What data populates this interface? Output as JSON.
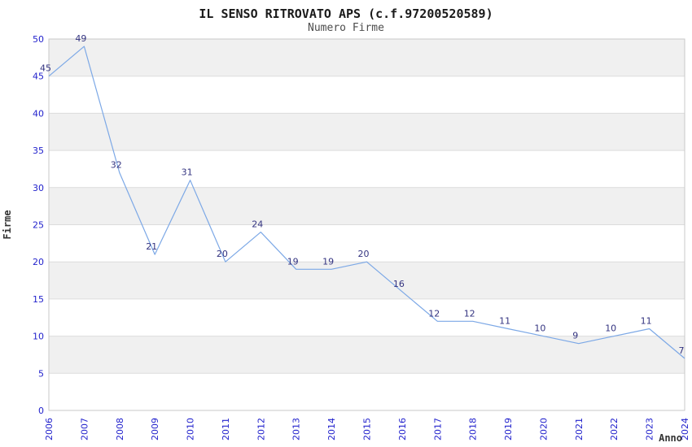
{
  "header": {
    "title": "IL SENSO RITROVATO APS (c.f.97200520589)",
    "subtitle": "Numero Firme"
  },
  "chart_data": {
    "type": "line",
    "title": "IL SENSO RITROVATO APS (c.f.97200520589)",
    "subtitle": "Numero Firme",
    "xlabel": "Anno",
    "ylabel": "Firme",
    "x": [
      "2006",
      "2007",
      "2008",
      "2009",
      "2010",
      "2011",
      "2012",
      "2013",
      "2014",
      "2015",
      "2016",
      "2017",
      "2018",
      "2019",
      "2020",
      "2021",
      "2022",
      "2023",
      "2024"
    ],
    "series": [
      {
        "name": "Numero Firme",
        "values": [
          45,
          49,
          32,
          21,
          31,
          20,
          24,
          19,
          19,
          20,
          16,
          12,
          12,
          11,
          10,
          9,
          10,
          11,
          7
        ]
      }
    ],
    "point_labels_shown": true,
    "ylim": [
      0,
      50
    ],
    "ytick_step": 5,
    "yticks": [
      0,
      5,
      10,
      15,
      20,
      25,
      30,
      35,
      40,
      45,
      50
    ],
    "grid": "horizontal",
    "band_shading": "alternating",
    "legend_position": "none",
    "colors": {
      "line": "#7CA8E6",
      "value_label": "#333380",
      "tick_label": "#2222CC",
      "axis_label": "#333333",
      "band": "#F0F0F0",
      "gridline": "#DCDCDC",
      "border": "#C9C9C9",
      "title": "#1A1A1A",
      "subtitle": "#4D4D4D"
    }
  }
}
